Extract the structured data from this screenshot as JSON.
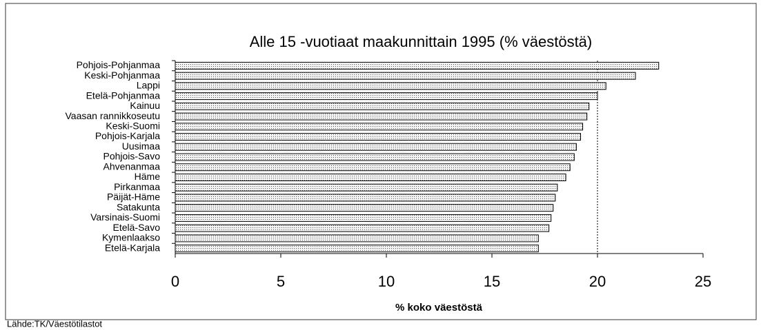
{
  "chart_data": {
    "type": "barh",
    "title": "Alle 15 -vuotiaat maakunnittain 1995 (% väestöstä)",
    "xlabel": "% koko väestöstä",
    "source": "Lähde:TK/Väestötilastot",
    "categories": [
      "Pohjois-Pohjanmaa",
      "Keski-Pohjanmaa",
      "Lappi",
      "Etelä-Pohjanmaa",
      "Kainuu",
      "Vaasan rannikkoseutu",
      "Keski-Suomi",
      "Pohjois-Karjala",
      "Uusimaa",
      "Pohjois-Savo",
      "Ahvenanmaa",
      "Häme",
      "Pirkanmaa",
      "Päijät-Häme",
      "Satakunta",
      "Varsinais-Suomi",
      "Etelä-Savo",
      "Kymenlaakso",
      "Etelä-Karjala"
    ],
    "values": [
      22.9,
      21.8,
      20.4,
      20.0,
      19.6,
      19.5,
      19.3,
      19.2,
      19.0,
      18.9,
      18.7,
      18.5,
      18.1,
      18.0,
      17.9,
      17.8,
      17.7,
      17.2,
      17.2
    ],
    "color": "#c8c8c8",
    "xlim": [
      0,
      25
    ],
    "xticks": [
      0,
      5,
      10,
      15,
      20,
      25
    ],
    "reference_lines": [
      20
    ]
  }
}
